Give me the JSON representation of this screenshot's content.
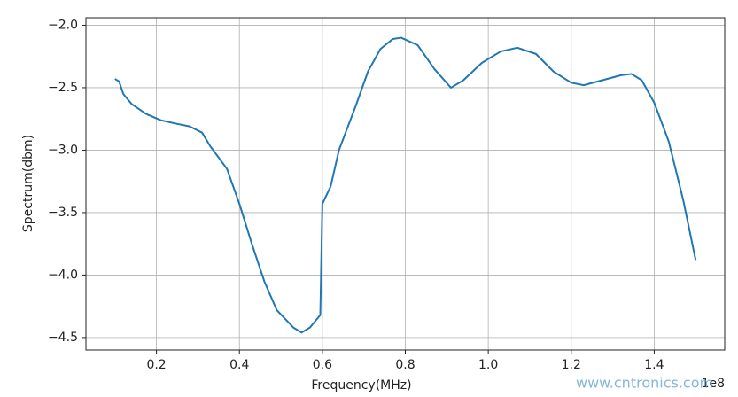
{
  "chart_data": {
    "type": "line",
    "xlabel": "Frequency(MHz)",
    "ylabel": "Spectrum(dbm)",
    "x_offset_label": "1e8",
    "watermark": "www.cntronics.com",
    "x": [
      0.1,
      0.11,
      0.12,
      0.14,
      0.175,
      0.21,
      0.25,
      0.28,
      0.31,
      0.33,
      0.37,
      0.4,
      0.43,
      0.46,
      0.49,
      0.53,
      0.55,
      0.57,
      0.595,
      0.6,
      0.62,
      0.64,
      0.68,
      0.71,
      0.74,
      0.77,
      0.79,
      0.83,
      0.87,
      0.91,
      0.94,
      0.985,
      1.03,
      1.07,
      1.115,
      1.157,
      1.2,
      1.23,
      1.275,
      1.32,
      1.345,
      1.37,
      1.4,
      1.435,
      1.47,
      1.5
    ],
    "series": [
      {
        "name": "spectrum",
        "color": "#1f77b4",
        "values": [
          -2.43,
          -2.45,
          -2.55,
          -2.63,
          -2.71,
          -2.76,
          -2.79,
          -2.81,
          -2.86,
          -2.97,
          -3.15,
          -3.43,
          -3.75,
          -4.05,
          -4.28,
          -4.42,
          -4.46,
          -4.42,
          -4.32,
          -3.43,
          -3.29,
          -3.0,
          -2.65,
          -2.37,
          -2.19,
          -2.11,
          -2.1,
          -2.16,
          -2.35,
          -2.5,
          -2.44,
          -2.3,
          -2.21,
          -2.18,
          -2.23,
          -2.37,
          -2.46,
          -2.48,
          -2.44,
          -2.4,
          -2.39,
          -2.44,
          -2.62,
          -2.93,
          -3.4,
          -3.88
        ]
      }
    ],
    "xlim": [
      0.03,
      1.57
    ],
    "ylim": [
      -4.6,
      -1.94
    ],
    "xticks": [
      0.2,
      0.4,
      0.6,
      0.8,
      {
        "value": 1.0,
        "label": "1.0"
      },
      1.2,
      1.4
    ],
    "yticks": [
      {
        "value": -4.5,
        "label": "−4.5"
      },
      {
        "value": -4.0,
        "label": "−4.0"
      },
      {
        "value": -3.5,
        "label": "−3.5"
      },
      {
        "value": -3.0,
        "label": "−3.0"
      },
      {
        "value": -2.5,
        "label": "−2.5"
      },
      {
        "value": -2.0,
        "label": "−2.0"
      }
    ],
    "grid": true
  }
}
